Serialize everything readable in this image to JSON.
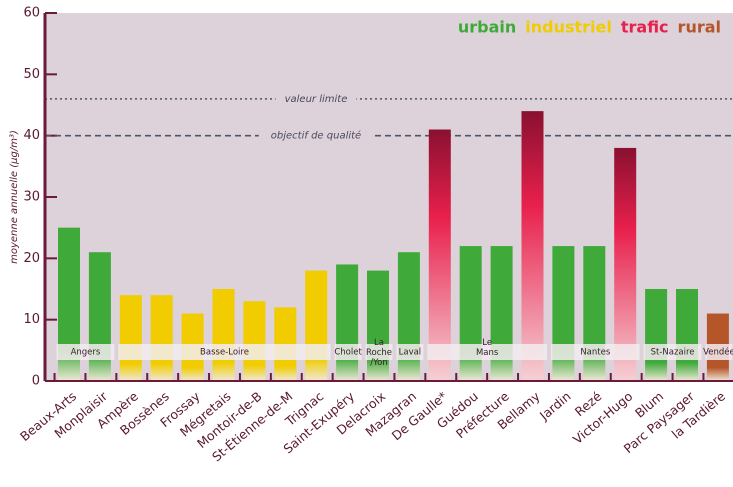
{
  "chart_data": {
    "type": "bar",
    "y_label": "moyenne annuelle (µg/m³)",
    "categories": [
      "Beaux-Arts",
      "Monplaisir",
      "Ampère",
      "Bossènes",
      "Frossay",
      "Mégretais",
      "Montoir-de-B",
      "St-Étienne-de-M",
      "Trignac",
      "Saint-Exupéry",
      "Delacroix",
      "Mazagran",
      "De Gaulle*",
      "Guédou",
      "Préfecture",
      "Bellamy",
      "Jardin",
      "Rezé",
      "Victor-Hugo",
      "Blum",
      "Parc Paysager",
      "la Tardière"
    ],
    "values": [
      25,
      21,
      14,
      14,
      11,
      15,
      13,
      12,
      18,
      19,
      18,
      21,
      41,
      22,
      22,
      44,
      22,
      22,
      38,
      15,
      15,
      11
    ],
    "category_types": [
      "urbain",
      "urbain",
      "industriel",
      "industriel",
      "industriel",
      "industriel",
      "industriel",
      "industriel",
      "industriel",
      "urbain",
      "urbain",
      "urbain",
      "trafic",
      "urbain",
      "urbain",
      "trafic",
      "urbain",
      "urbain",
      "trafic",
      "urbain",
      "urbain",
      "rural"
    ],
    "category_groups": [
      "Angers",
      "Angers",
      "Basse-Loire",
      "Basse-Loire",
      "Basse-Loire",
      "Basse-Loire",
      "Basse-Loire",
      "Basse-Loire",
      "Basse-Loire",
      "Cholet",
      "La Roche /Yon",
      "Laval",
      "Le Mans",
      "Le Mans",
      "Le Mans",
      "Le Mans",
      "Nantes",
      "Nantes",
      "Nantes",
      "St-Nazaire",
      "St-Nazaire",
      "Vendée"
    ],
    "legend": [
      {
        "name": "urbain",
        "color": "#3faa3a"
      },
      {
        "name": "industriel",
        "color": "#f0cc00"
      },
      {
        "name": "trafic",
        "color": "#e8204c"
      },
      {
        "name": "rural",
        "color": "#b4552a"
      }
    ],
    "reference_lines": [
      {
        "label": "valeur limite",
        "value": 46,
        "style": "dotted"
      },
      {
        "label": "objectif de qualité",
        "value": 40,
        "style": "dashed"
      }
    ],
    "ylim": [
      0,
      60
    ],
    "yticks": [
      0,
      10,
      20,
      30,
      40,
      50,
      60
    ]
  }
}
